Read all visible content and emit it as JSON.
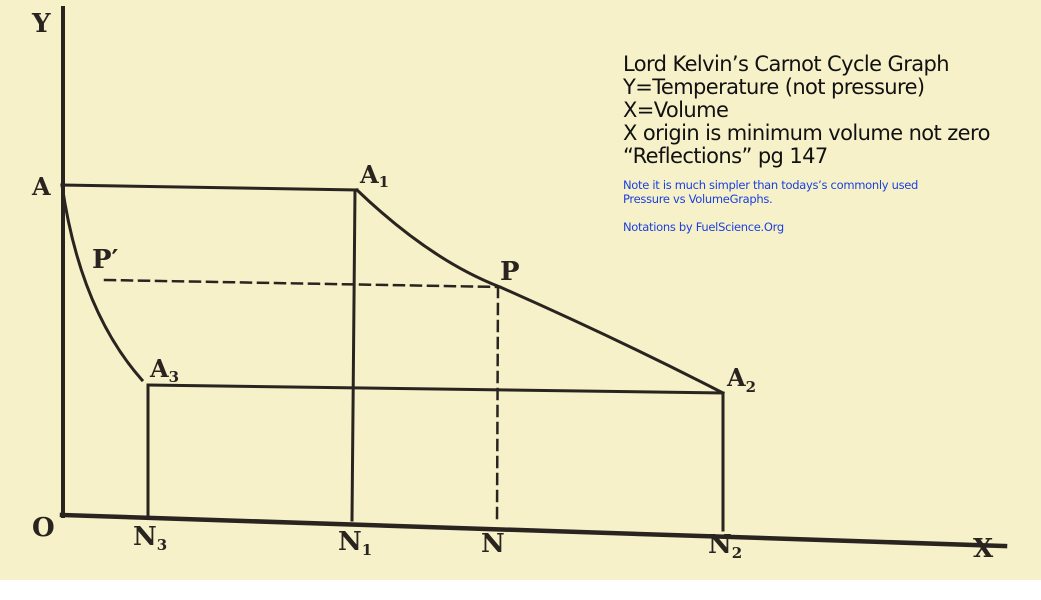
{
  "diagram": {
    "axis_labels": {
      "y": "Y",
      "x": "X",
      "origin": "O"
    },
    "points": {
      "A": "A",
      "A1": {
        "main": "A",
        "sub": "1"
      },
      "A2": {
        "main": "A",
        "sub": "2"
      },
      "A3": {
        "main": "A",
        "sub": "3"
      },
      "P": "P",
      "P_prime": "P′",
      "N": "N",
      "N1": {
        "main": "N",
        "sub": "1"
      },
      "N2": {
        "main": "N",
        "sub": "2"
      },
      "N3": {
        "main": "N",
        "sub": "3"
      }
    },
    "colors": {
      "paper": "#f6f1c9",
      "ink": "#2a2420",
      "note_blue": "#1a3fe0"
    }
  },
  "notes": {
    "lines": [
      "Lord Kelvin’s Carnot Cycle Graph",
      "Y=Temperature (not pressure)",
      "X=Volume",
      "X origin is minimum volume not zero",
      "“Reflections” pg 147"
    ],
    "note": [
      "Note it is much simpler than todays’s commonly used",
      "Pressure vs VolumeGraphs."
    ],
    "credit": "Notations by FuelScience.Org"
  }
}
